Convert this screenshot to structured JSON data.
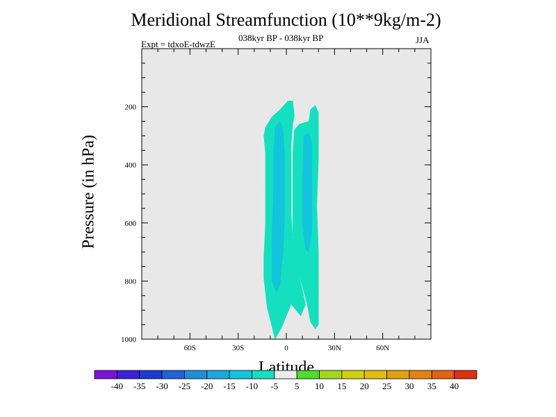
{
  "chart_data": {
    "type": "contour",
    "title": "Meridional Streamfunction (10**9kg/m-2)",
    "subtitle": "038kyr BP - 038kyr BP",
    "left_label": "Expt = tdxoE-tdwzE",
    "right_label": "JJA",
    "xlabel": "Latitude",
    "ylabel": "Pressure (in hPa)",
    "xlim": [
      -90,
      90
    ],
    "ylim": [
      1000,
      0
    ],
    "x_ticks": [
      {
        "value": -60,
        "label": "60S"
      },
      {
        "value": -30,
        "label": "30S"
      },
      {
        "value": 0,
        "label": "0"
      },
      {
        "value": 30,
        "label": "30N"
      },
      {
        "value": 60,
        "label": "60N"
      }
    ],
    "y_ticks": [
      {
        "value": 200,
        "label": "200"
      },
      {
        "value": 400,
        "label": "400"
      },
      {
        "value": 600,
        "label": "600"
      },
      {
        "value": 800,
        "label": "800"
      },
      {
        "value": 1000,
        "label": "1000"
      }
    ],
    "background_color": "#e8e8e8",
    "contour_levels": [
      -40,
      -35,
      -30,
      -25,
      -20,
      -15,
      -10,
      -5,
      5,
      10,
      15,
      20,
      25,
      30,
      35,
      40
    ],
    "colorbar": [
      {
        "color": "#7a14d6",
        "label": ""
      },
      {
        "color": "#3c1fd6",
        "label": "-40"
      },
      {
        "color": "#1e3ad6",
        "label": "-35"
      },
      {
        "color": "#1f63d8",
        "label": "-30"
      },
      {
        "color": "#1f8ed8",
        "label": "-25"
      },
      {
        "color": "#1ea9da",
        "label": "-20"
      },
      {
        "color": "#12c4dc",
        "label": "-15"
      },
      {
        "color": "#14e0c0",
        "label": "-10"
      },
      {
        "color": "#ececec",
        "label": "-5"
      },
      {
        "color": "#4fdc2a",
        "label": "5"
      },
      {
        "color": "#a6d61a",
        "label": "10"
      },
      {
        "color": "#d0d012",
        "label": "15"
      },
      {
        "color": "#e0bc10",
        "label": "20"
      },
      {
        "color": "#e0a010",
        "label": "25"
      },
      {
        "color": "#e28410",
        "label": "30"
      },
      {
        "color": "#e06410",
        "label": "35"
      },
      {
        "color": "#dc3010",
        "label": "40"
      }
    ],
    "regions": [
      {
        "name": "west-cell-outer",
        "level_range": [
          -10,
          -5
        ],
        "color": "#14e0c0",
        "points": [
          [
            -7,
            1000
          ],
          [
            -12,
            890
          ],
          [
            -14,
            790
          ],
          [
            -14,
            720
          ],
          [
            -13,
            600
          ],
          [
            -13,
            480
          ],
          [
            -13,
            360
          ],
          [
            -14,
            300
          ],
          [
            -13,
            270
          ],
          [
            -9,
            235
          ],
          [
            -4,
            210
          ],
          [
            1,
            180
          ],
          [
            4,
            180
          ],
          [
            5,
            230
          ],
          [
            4,
            260
          ],
          [
            3,
            330
          ],
          [
            3,
            430
          ],
          [
            3,
            560
          ],
          [
            4,
            660
          ],
          [
            7,
            760
          ],
          [
            12,
            880
          ],
          [
            9,
            920
          ],
          [
            3,
            880
          ],
          [
            -3,
            960
          ]
        ]
      },
      {
        "name": "west-cell-inner",
        "level_range": [
          -15,
          -10
        ],
        "color": "#12c4dc",
        "points": [
          [
            -7,
            270
          ],
          [
            -4,
            250
          ],
          [
            -2,
            280
          ],
          [
            -1,
            380
          ],
          [
            -1,
            470
          ],
          [
            -1,
            570
          ],
          [
            -2,
            700
          ],
          [
            -4,
            810
          ],
          [
            -6,
            840
          ],
          [
            -9,
            800
          ],
          [
            -9,
            650
          ],
          [
            -8,
            500
          ],
          [
            -8,
            370
          ]
        ]
      },
      {
        "name": "east-cell-outer",
        "level_range": [
          -10,
          -5
        ],
        "color": "#14e0c0",
        "points": [
          [
            8,
            260
          ],
          [
            14,
            250
          ],
          [
            15,
            210
          ],
          [
            18,
            195
          ],
          [
            20,
            220
          ],
          [
            20,
            380
          ],
          [
            19,
            540
          ],
          [
            20,
            700
          ],
          [
            20,
            830
          ],
          [
            20,
            950
          ],
          [
            18,
            965
          ],
          [
            15,
            940
          ],
          [
            13,
            880
          ],
          [
            9,
            800
          ],
          [
            5,
            720
          ],
          [
            4,
            640
          ],
          [
            4,
            500
          ],
          [
            4,
            360
          ],
          [
            5,
            280
          ]
        ]
      },
      {
        "name": "east-cell-inner",
        "level_range": [
          -15,
          -10
        ],
        "color": "#12c4dc",
        "points": [
          [
            11,
            300
          ],
          [
            14,
            290
          ],
          [
            16,
            330
          ],
          [
            16,
            480
          ],
          [
            16,
            620
          ],
          [
            14,
            700
          ],
          [
            12,
            690
          ],
          [
            10,
            600
          ],
          [
            10,
            450
          ]
        ]
      }
    ]
  }
}
